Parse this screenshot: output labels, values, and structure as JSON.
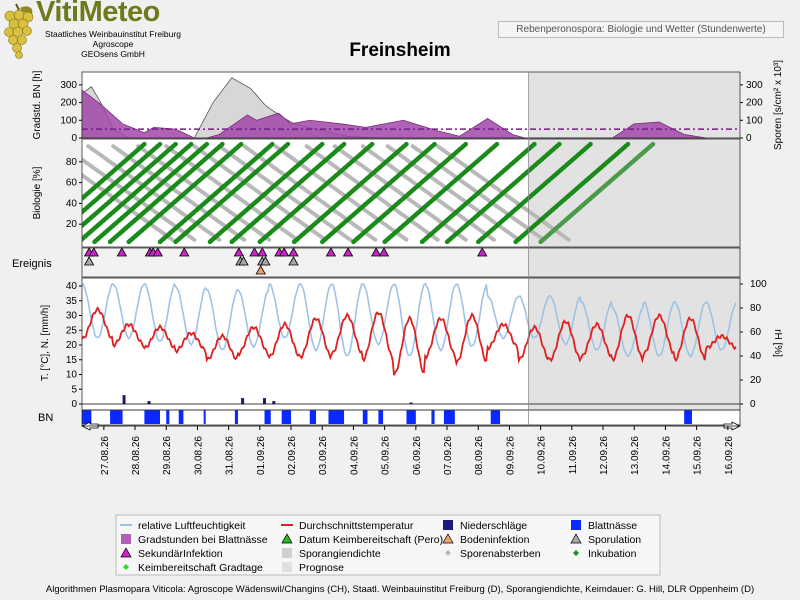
{
  "header": {
    "brand": "VitiMeteo",
    "org_line1": "Staatliches Weinbauinstitut Freiburg",
    "org_line2": "Agroscope",
    "org_line3": "GEOsens GmbH",
    "caption": "Rebenperonospora: Biologie und Wetter (Stundenwerte)",
    "station": "Freinsheim"
  },
  "footer": {
    "credits": "Algorithmen Plasmopara Viticola: Agroscope Wädenswil/Changins (CH), Staatl. Weinbauinstitut Freiburg (D), Sporangiendichte, Keimdauer: G. Hill, DLR Oppenheim (D)"
  },
  "chart_data": {
    "type": "line",
    "x_dates": [
      "27.08.26",
      "28.08.26",
      "29.08.26",
      "30.08.26",
      "31.08.26",
      "01.09.26",
      "02.09.26",
      "03.09.26",
      "04.09.26",
      "05.09.26",
      "06.09.26",
      "07.09.26",
      "08.09.26",
      "09.09.26",
      "10.09.26",
      "11.09.26",
      "12.09.26",
      "13.09.26",
      "14.09.26",
      "15.09.26",
      "16.09.26"
    ],
    "forecast_start_day": 14,
    "panels": {
      "bn": {
        "ylabel": "Gradstd. BN [h]",
        "ylabel_right": "Sporen [s/cm² x 10³]",
        "yticks": [
          0,
          100,
          200,
          300
        ],
        "yticks_right": [
          0,
          100,
          200,
          300
        ],
        "ylim": [
          0,
          350
        ],
        "threshold": 50,
        "gradstunden": [
          [
            0,
            270
          ],
          [
            0.6,
            190
          ],
          [
            1.3,
            80
          ],
          [
            2.0,
            30
          ],
          [
            2.3,
            60
          ],
          [
            3.0,
            50
          ],
          [
            3.6,
            0
          ],
          [
            4.0,
            0
          ],
          [
            4.4,
            20
          ],
          [
            5.3,
            130
          ],
          [
            5.6,
            100
          ],
          [
            6.3,
            140
          ],
          [
            6.7,
            80
          ],
          [
            7.3,
            100
          ],
          [
            8.3,
            80
          ],
          [
            9.1,
            60
          ],
          [
            10.3,
            100
          ],
          [
            11.4,
            40
          ],
          [
            12.1,
            10
          ],
          [
            13.0,
            110
          ],
          [
            13.8,
            20
          ],
          [
            14.2,
            0
          ],
          [
            17.0,
            0
          ],
          [
            17.7,
            80
          ],
          [
            18.5,
            90
          ],
          [
            19.3,
            20
          ],
          [
            20.0,
            0
          ]
        ],
        "sporangiendichte": [
          [
            0,
            250
          ],
          [
            0.3,
            290
          ],
          [
            0.6,
            200
          ],
          [
            1.0,
            50
          ],
          [
            1.5,
            0
          ],
          [
            3.6,
            0
          ],
          [
            4.2,
            200
          ],
          [
            4.8,
            340
          ],
          [
            5.4,
            280
          ],
          [
            5.9,
            180
          ],
          [
            6.4,
            120
          ],
          [
            6.8,
            80
          ],
          [
            7.5,
            50
          ],
          [
            8.5,
            10
          ],
          [
            9.5,
            0
          ],
          [
            20,
            0
          ]
        ]
      },
      "biologie": {
        "ylabel": "Biologie [%]",
        "yticks": [
          20,
          40,
          60,
          80
        ],
        "ylim": [
          0,
          100
        ],
        "inkubation_starts": [
          -2.3,
          -1.8,
          -1.3,
          -0.8,
          -0.3,
          0.2,
          0.8,
          1.8,
          2.3,
          3.4,
          4.1,
          5.0,
          6.1,
          7.0,
          8.0,
          9.0,
          10.2,
          11.0,
          12.0,
          13.2,
          14.0
        ],
        "inkubation_duration": 3.6,
        "sporen_starts": [
          -2,
          -1.3,
          -0.5,
          0.3,
          1.1,
          2.0,
          2.9,
          3.7,
          4.5,
          5.5,
          6.5,
          7.4,
          8.3,
          9.1,
          9.9,
          10.7
        ],
        "sporen_duration": 4.2
      },
      "ereignis": {
        "label": "Ereignis",
        "sekundaer": [
          0.1,
          0.25,
          1.15,
          2.05,
          2.15,
          2.3,
          3.15,
          4.9,
          5.4,
          5.65,
          6.2,
          6.35,
          6.65,
          7.85,
          8.4,
          9.3,
          9.55,
          12.7
        ],
        "boden": [
          5.6
        ],
        "sporulation": [
          0.1,
          4.95,
          5.05,
          5.65,
          5.75,
          6.65
        ]
      },
      "wetter": {
        "ylabel": "T. [°C], N. [mm/h]",
        "ylabel_right": "rH [%]",
        "yticks": [
          0,
          5,
          10,
          15,
          20,
          25,
          30,
          35,
          40
        ],
        "yticks_right": [
          0,
          20,
          40,
          60,
          80,
          100
        ],
        "temp_day": [
          [
            22,
            32
          ],
          [
            20,
            27
          ],
          [
            19,
            26
          ],
          [
            18,
            24
          ],
          [
            15,
            23
          ],
          [
            17,
            26
          ],
          [
            16,
            27
          ],
          [
            16,
            29
          ],
          [
            17,
            30
          ],
          [
            15,
            31
          ],
          [
            10,
            29
          ],
          [
            16,
            29
          ],
          [
            14,
            30
          ],
          [
            19,
            27
          ],
          [
            15,
            26
          ],
          [
            15,
            28
          ],
          [
            16,
            27
          ],
          [
            15,
            30
          ],
          [
            17,
            30
          ],
          [
            15,
            29
          ],
          [
            19,
            23
          ]
        ],
        "rh_day": [
          [
            55,
            100
          ],
          [
            55,
            100
          ],
          [
            52,
            100
          ],
          [
            50,
            98
          ],
          [
            45,
            95
          ],
          [
            48,
            95
          ],
          [
            55,
            100
          ],
          [
            45,
            100
          ],
          [
            40,
            100
          ],
          [
            50,
            100
          ],
          [
            40,
            100
          ],
          [
            45,
            100
          ],
          [
            48,
            100
          ],
          [
            55,
            90
          ],
          [
            55,
            90
          ],
          [
            50,
            90
          ],
          [
            45,
            85
          ],
          [
            40,
            80
          ],
          [
            40,
            85
          ],
          [
            40,
            85
          ],
          [
            45,
            85
          ]
        ],
        "niederschlag": [
          [
            1.3,
            3
          ],
          [
            2.1,
            1
          ],
          [
            5.1,
            2
          ],
          [
            5.8,
            2
          ],
          [
            6.1,
            1
          ],
          [
            10.5,
            0.5
          ]
        ]
      },
      "blattnaesse": {
        "label": "BN",
        "intervals": [
          [
            0,
            0.3
          ],
          [
            0.9,
            1.3
          ],
          [
            2.0,
            2.5
          ],
          [
            2.7,
            2.8
          ],
          [
            3.1,
            3.25
          ],
          [
            3.9,
            3.95
          ],
          [
            4.9,
            5.0
          ],
          [
            5.85,
            6.05
          ],
          [
            6.4,
            6.7
          ],
          [
            7.3,
            7.5
          ],
          [
            7.9,
            8.4
          ],
          [
            9.0,
            9.15
          ],
          [
            9.5,
            9.65
          ],
          [
            10.4,
            10.7
          ],
          [
            11.2,
            11.3
          ],
          [
            11.6,
            11.95
          ],
          [
            13.1,
            13.4
          ],
          [
            19.3,
            19.55
          ]
        ]
      }
    },
    "legend": [
      {
        "label": "relative Luftfeuchtigkeit",
        "symbol": "line",
        "color": "#9dc3e6"
      },
      {
        "label": "Durchschnittstemperatur",
        "symbol": "line",
        "color": "#e02020"
      },
      {
        "label": "Niederschläge",
        "symbol": "square",
        "color": "#1a1a7a"
      },
      {
        "label": "Blattnässe",
        "symbol": "square",
        "color": "#0a28ff"
      },
      {
        "label": "Gradstunden bei Blattnässe",
        "symbol": "square",
        "color": "#b060b8"
      },
      {
        "label": "Datum Keimbereitschaft (Pero)",
        "symbol": "triangle",
        "color": "#22bb22"
      },
      {
        "label": "Bodeninfektion",
        "symbol": "triangle",
        "color": "#f4a070"
      },
      {
        "label": "Sporulation",
        "symbol": "triangle",
        "color": "#a8a8a8"
      },
      {
        "label": "SekundärInfektion",
        "symbol": "triangle",
        "color": "#cc22cc"
      },
      {
        "label": "Sporangiendichte",
        "symbol": "square",
        "color": "#d0d0d0"
      },
      {
        "label": "Sporenabsterben",
        "symbol": "diamond",
        "color": "#b8b8b8"
      },
      {
        "label": "Inkubation",
        "symbol": "diamond",
        "color": "#1a8a1a"
      },
      {
        "label": "Keimbereitschaft Gradtage",
        "symbol": "diamond",
        "color": "#22dd22"
      },
      {
        "label": "Prognose",
        "symbol": "square",
        "color": "#e0e0e0"
      }
    ]
  }
}
